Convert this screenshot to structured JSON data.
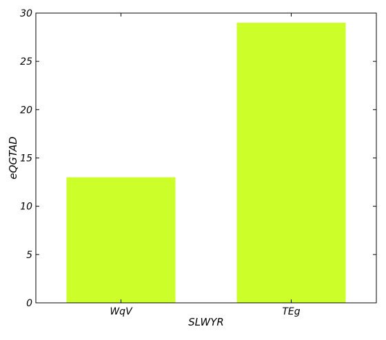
{
  "chart_data": {
    "type": "bar",
    "title": "",
    "xlabel": "SLWYR",
    "ylabel": "eQGTAD",
    "categories": [
      "WqV",
      "TEg"
    ],
    "values": [
      13,
      29
    ],
    "ylim": [
      0,
      30
    ],
    "yticks": [
      "0",
      "5",
      "10",
      "15",
      "20",
      "25",
      "30"
    ],
    "grid": false,
    "legend": "none",
    "colors": {
      "bar": "#ccff2a",
      "axis": "#000000",
      "background": "#ffffff"
    }
  }
}
